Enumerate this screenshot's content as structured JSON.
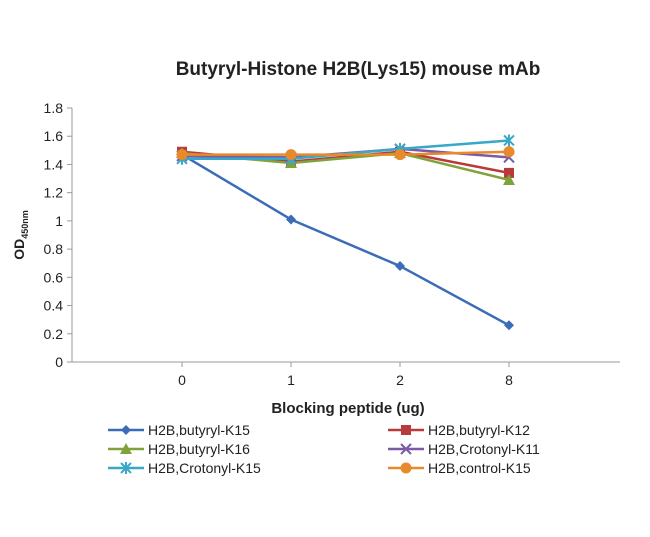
{
  "chart_data": {
    "type": "line",
    "title": "Butyryl-Histone H2B(Lys15) mouse mAb",
    "xlabel": "Blocking peptide (ug)",
    "ylabel_main": "OD",
    "ylabel_sub": "450nm",
    "categories": [
      "0",
      "1",
      "2",
      "8"
    ],
    "ylim": [
      0,
      1.8
    ],
    "yticks": [
      "0",
      "0.2",
      "0.4",
      "0.6",
      "0.8",
      "1",
      "1.2",
      "1.4",
      "1.6",
      "1.8"
    ],
    "grid": false,
    "legend_position": "bottom",
    "series": [
      {
        "name": "H2B,butyryl-K15",
        "values": [
          1.47,
          1.01,
          0.68,
          0.26
        ],
        "color": "#3a6cb8",
        "marker": "diamond"
      },
      {
        "name": "H2B,butyryl-K12",
        "values": [
          1.49,
          1.42,
          1.49,
          1.34
        ],
        "color": "#b83a3a",
        "marker": "square"
      },
      {
        "name": "H2B,butyryl-K16",
        "values": [
          1.48,
          1.41,
          1.48,
          1.29
        ],
        "color": "#7fa33a",
        "marker": "triangle"
      },
      {
        "name": "H2B,Crotonyl-K11",
        "values": [
          1.46,
          1.45,
          1.51,
          1.45
        ],
        "color": "#7b5aa6",
        "marker": "x"
      },
      {
        "name": "H2B,Crotonyl-K15",
        "values": [
          1.44,
          1.44,
          1.51,
          1.57
        ],
        "color": "#37a8c8",
        "marker": "star"
      },
      {
        "name": "H2B,control-K15",
        "values": [
          1.47,
          1.47,
          1.47,
          1.49
        ],
        "color": "#e8892c",
        "marker": "circle"
      }
    ]
  }
}
